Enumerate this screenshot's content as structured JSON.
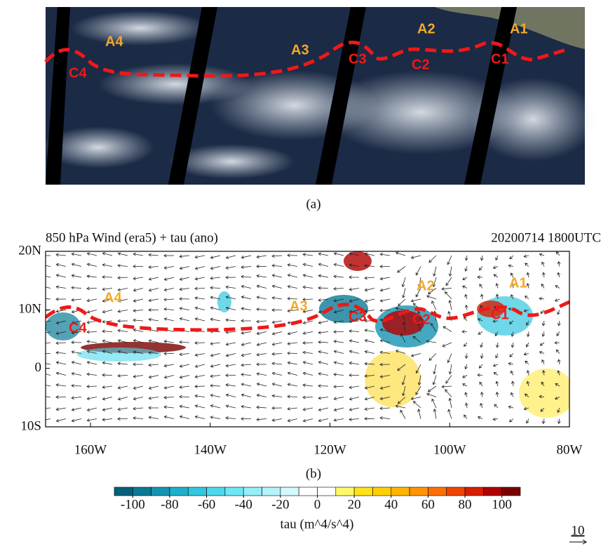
{
  "panel_a": {
    "caption": "(a)",
    "ridges": [
      "A1",
      "A2",
      "A3",
      "A4"
    ],
    "troughs": [
      "C1",
      "C2",
      "C3",
      "C4"
    ]
  },
  "panel_b": {
    "title": "850 hPa Wind (era5) + tau (ano)",
    "time": "20200714 1800UTC",
    "caption": "(b)",
    "ridges": [
      "A1",
      "A2",
      "A3",
      "A4"
    ],
    "troughs": [
      "C1",
      "C2",
      "C3",
      "C4"
    ],
    "lonlim": [
      -167.5,
      -80
    ],
    "latlim": [
      -10,
      20
    ],
    "lon_ticks": [
      {
        "value": -160,
        "label": "160W"
      },
      {
        "value": -140,
        "label": "140W"
      },
      {
        "value": -120,
        "label": "120W"
      },
      {
        "value": -100,
        "label": "100W"
      },
      {
        "value": -80,
        "label": "80W"
      }
    ],
    "lat_ticks": [
      {
        "value": 20,
        "label": "20N"
      },
      {
        "value": 10,
        "label": "10N"
      },
      0,
      {
        "value": -10,
        "label": "10S"
      }
    ],
    "colorbar": {
      "label": "tau (m^4/s^4)",
      "lim": [
        -110,
        110
      ],
      "step": 10,
      "ticks": [
        -100,
        -80,
        -60,
        -40,
        -20,
        0,
        20,
        40,
        60,
        80,
        100
      ],
      "colors": [
        "#05607a",
        "#0b7a95",
        "#1594b0",
        "#1fb0c9",
        "#33c6df",
        "#4fd8ec",
        "#6fe6f5",
        "#95eef9",
        "#b5f4fb",
        "#d3f9fd",
        "#ffffff",
        "#ffffff",
        "#fff86a",
        "#ffe31a",
        "#ffd000",
        "#ffb400",
        "#ff9400",
        "#ff6e00",
        "#f04400",
        "#d81e00",
        "#b00000",
        "#7a0000"
      ]
    },
    "reference_vector": 10
  }
}
